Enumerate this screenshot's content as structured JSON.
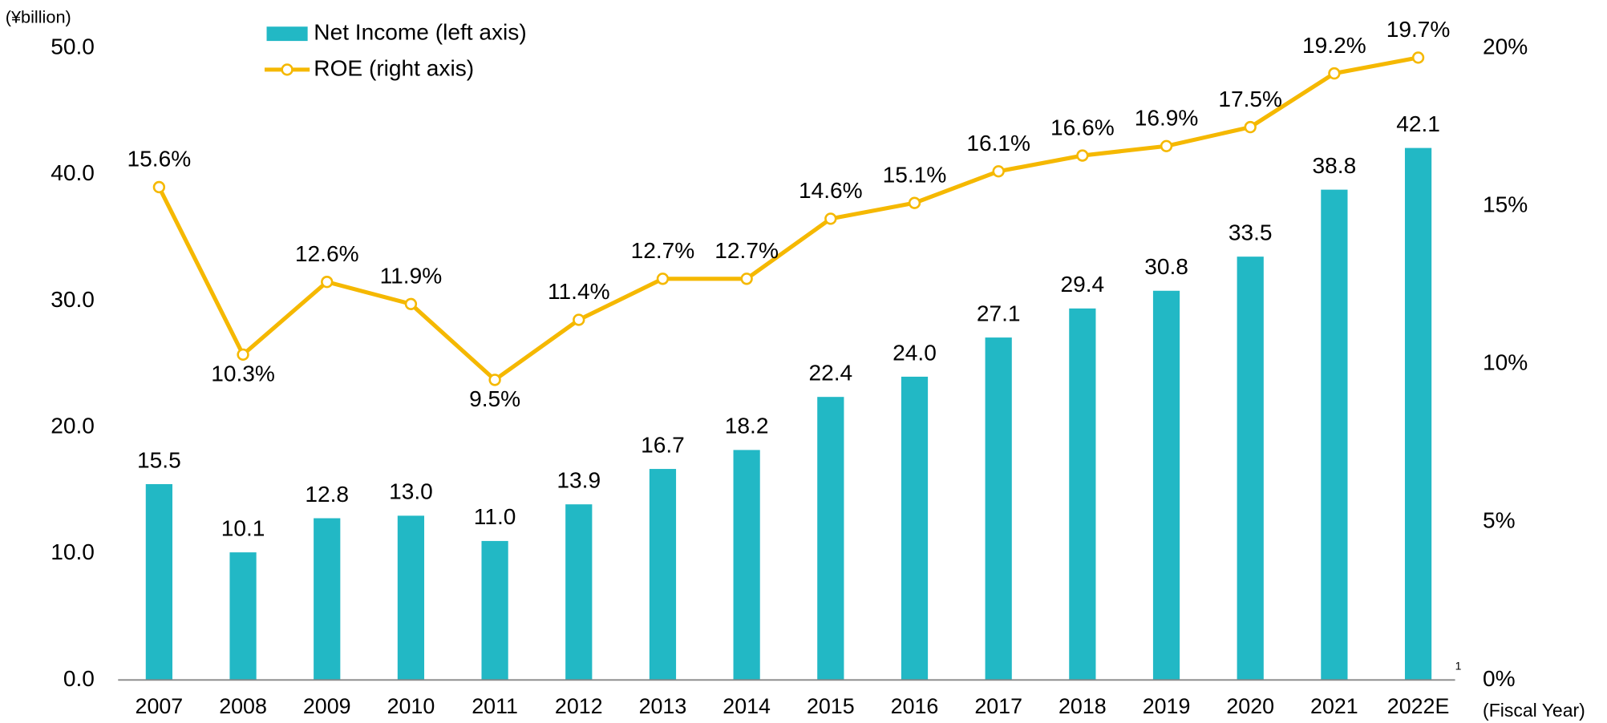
{
  "chart_data": {
    "type": "bar_line",
    "y_axis_label": "(¥billion)",
    "x_axis_label": "(Fiscal Year)",
    "footnote_marker": "1",
    "categories": [
      "2007",
      "2008",
      "2009",
      "2010",
      "2011",
      "2012",
      "2013",
      "2014",
      "2015",
      "2016",
      "2017",
      "2018",
      "2019",
      "2020",
      "2021",
      "2022E"
    ],
    "series": [
      {
        "name": "Net Income (left axis)",
        "type": "bar",
        "axis": "y",
        "color": "#22b8c5",
        "values": [
          15.5,
          10.1,
          12.8,
          13.0,
          11.0,
          13.9,
          16.7,
          18.2,
          22.4,
          24.0,
          27.1,
          29.4,
          30.8,
          33.5,
          38.8,
          42.1
        ],
        "value_labels": [
          "15.5",
          "10.1",
          "12.8",
          "13.0",
          "11.0",
          "13.9",
          "16.7",
          "18.2",
          "22.4",
          "24.0",
          "27.1",
          "29.4",
          "30.8",
          "33.5",
          "38.8",
          "42.1"
        ]
      },
      {
        "name": "ROE (right axis)",
        "type": "line",
        "axis": "y2",
        "color": "#f5b800",
        "values": [
          15.6,
          10.3,
          12.6,
          11.9,
          9.5,
          11.4,
          12.7,
          12.7,
          14.6,
          15.1,
          16.1,
          16.6,
          16.9,
          17.5,
          19.2,
          19.7
        ],
        "value_labels": [
          "15.6%",
          "10.3%",
          "12.6%",
          "11.9%",
          "9.5%",
          "11.4%",
          "12.7%",
          "12.7%",
          "14.6%",
          "15.1%",
          "16.1%",
          "16.6%",
          "16.9%",
          "17.5%",
          "19.2%",
          "19.7%"
        ]
      }
    ],
    "ylim": [
      0,
      50
    ],
    "yticks": [
      {
        "value": 0,
        "label": "0.0"
      },
      {
        "value": 10,
        "label": "10.0"
      },
      {
        "value": 20,
        "label": "20.0"
      },
      {
        "value": 30,
        "label": "30.0"
      },
      {
        "value": 40,
        "label": "40.0"
      },
      {
        "value": 50,
        "label": "50.0"
      }
    ],
    "y2lim": [
      0,
      20
    ],
    "y2ticks": [
      {
        "value": 0,
        "label": "0%"
      },
      {
        "value": 5,
        "label": "5%"
      },
      {
        "value": 10,
        "label": "10%"
      },
      {
        "value": 15,
        "label": "15%"
      },
      {
        "value": 20,
        "label": "20%"
      }
    ],
    "grid": false,
    "legend": "top-left"
  }
}
